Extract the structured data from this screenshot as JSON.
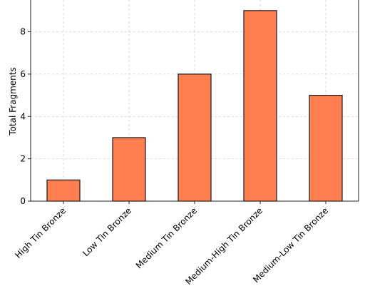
{
  "chart_data": {
    "type": "bar",
    "title": "",
    "xlabel": "",
    "ylabel": "Total Fragments",
    "categories": [
      "High Tin Bronze",
      "Low Tin Bronze",
      "Medium Tin Bronze",
      "Medium-High Tin Bronze",
      "Medium-Low Tin Bronze"
    ],
    "values": [
      1,
      3,
      6,
      9,
      5
    ],
    "ylim": [
      0,
      9.5
    ],
    "yticks": [
      0,
      2,
      4,
      6,
      8
    ],
    "grid": true,
    "bar_color": "#ff7f50",
    "edge_color": "#1a1a1a"
  }
}
